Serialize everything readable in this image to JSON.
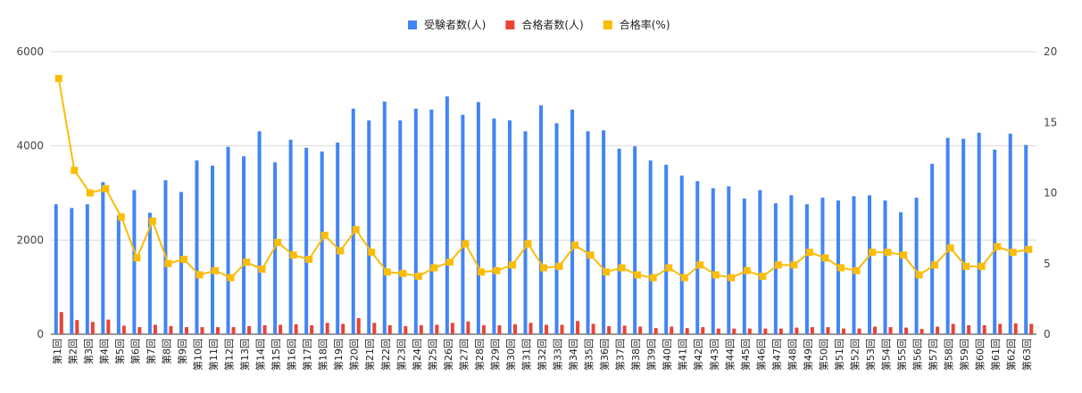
{
  "chart_data": {
    "type": "bar",
    "categories": [
      "第1回",
      "第2回",
      "第3回",
      "第4回",
      "第5回",
      "第6回",
      "第7回",
      "第8回",
      "第9回",
      "第10回",
      "第11回",
      "第12回",
      "第13回",
      "第14回",
      "第15回",
      "第16回",
      "第17回",
      "第18回",
      "第19回",
      "第20回",
      "第21回",
      "第22回",
      "第23回",
      "第24回",
      "第25回",
      "第26回",
      "第27回",
      "第28回",
      "第29回",
      "第30回",
      "第31回",
      "第32回",
      "第33回",
      "第34回",
      "第35回",
      "第36回",
      "第37回",
      "第38回",
      "第39回",
      "第40回",
      "第41回",
      "第42回",
      "第43回",
      "第44回",
      "第45回",
      "第46回",
      "第47回",
      "第48回",
      "第49回",
      "第50回",
      "第51回",
      "第52回",
      "第53回",
      "第54回",
      "第55回",
      "第56回",
      "第57回",
      "第58回",
      "第59回",
      "第60回",
      "第61回",
      "第62回",
      "第63回"
    ],
    "series": [
      {
        "name": "受験者数(人)",
        "type": "bar",
        "axis": "left",
        "color": "#4285f4",
        "values": [
          2760,
          2680,
          2760,
          3230,
          2520,
          3060,
          2580,
          3270,
          3020,
          3690,
          3580,
          3980,
          3780,
          4310,
          3650,
          4130,
          3960,
          3880,
          4070,
          4790,
          4540,
          4940,
          4540,
          4790,
          4770,
          5050,
          4660,
          4930,
          4580,
          4540,
          4310,
          4860,
          4480,
          4770,
          4310,
          4330,
          3940,
          3990,
          3690,
          3600,
          3370,
          3250,
          3100,
          3140,
          2880,
          3060,
          2780,
          2950,
          2760,
          2900,
          2840,
          2930,
          2950,
          2840,
          2590,
          2900,
          3620,
          4170,
          4150,
          4280,
          3920,
          4260,
          4020
        ]
      },
      {
        "name": "合格者数(人)",
        "type": "bar",
        "axis": "left",
        "color": "#ea4335",
        "values": [
          470,
          300,
          260,
          310,
          180,
          150,
          200,
          170,
          150,
          150,
          150,
          150,
          170,
          190,
          200,
          210,
          190,
          240,
          220,
          340,
          240,
          190,
          170,
          190,
          200,
          240,
          270,
          190,
          190,
          210,
          240,
          200,
          200,
          280,
          220,
          170,
          180,
          160,
          130,
          160,
          130,
          150,
          120,
          120,
          120,
          120,
          120,
          140,
          150,
          150,
          120,
          120,
          160,
          150,
          140,
          110,
          160,
          220,
          190,
          190,
          220,
          230,
          220
        ]
      },
      {
        "name": "合格率(%)",
        "type": "line",
        "axis": "right",
        "color": "#fbbc04",
        "values": [
          18.1,
          11.6,
          10.0,
          10.3,
          8.3,
          5.4,
          8.0,
          5.0,
          5.3,
          4.2,
          4.5,
          4.0,
          5.1,
          4.6,
          6.5,
          5.6,
          5.3,
          7.0,
          5.9,
          7.4,
          5.8,
          4.4,
          4.3,
          4.1,
          4.7,
          5.1,
          6.4,
          4.4,
          4.5,
          4.9,
          6.4,
          4.7,
          4.8,
          6.3,
          5.6,
          4.4,
          4.7,
          4.2,
          4.0,
          4.7,
          4.0,
          4.9,
          4.2,
          4.0,
          4.5,
          4.1,
          4.9,
          4.9,
          5.8,
          5.4,
          4.7,
          4.5,
          5.8,
          5.8,
          5.6,
          4.2,
          4.9,
          6.1,
          4.8,
          4.8,
          6.2,
          5.8,
          6.0
        ]
      }
    ],
    "y_left": {
      "min": 0,
      "max": 6000,
      "ticks": [
        0,
        2000,
        4000,
        6000
      ]
    },
    "y_right": {
      "min": 0,
      "max": 20,
      "ticks": [
        0,
        5,
        10,
        15,
        20
      ]
    },
    "grid": true,
    "legend_position": "top-center"
  }
}
